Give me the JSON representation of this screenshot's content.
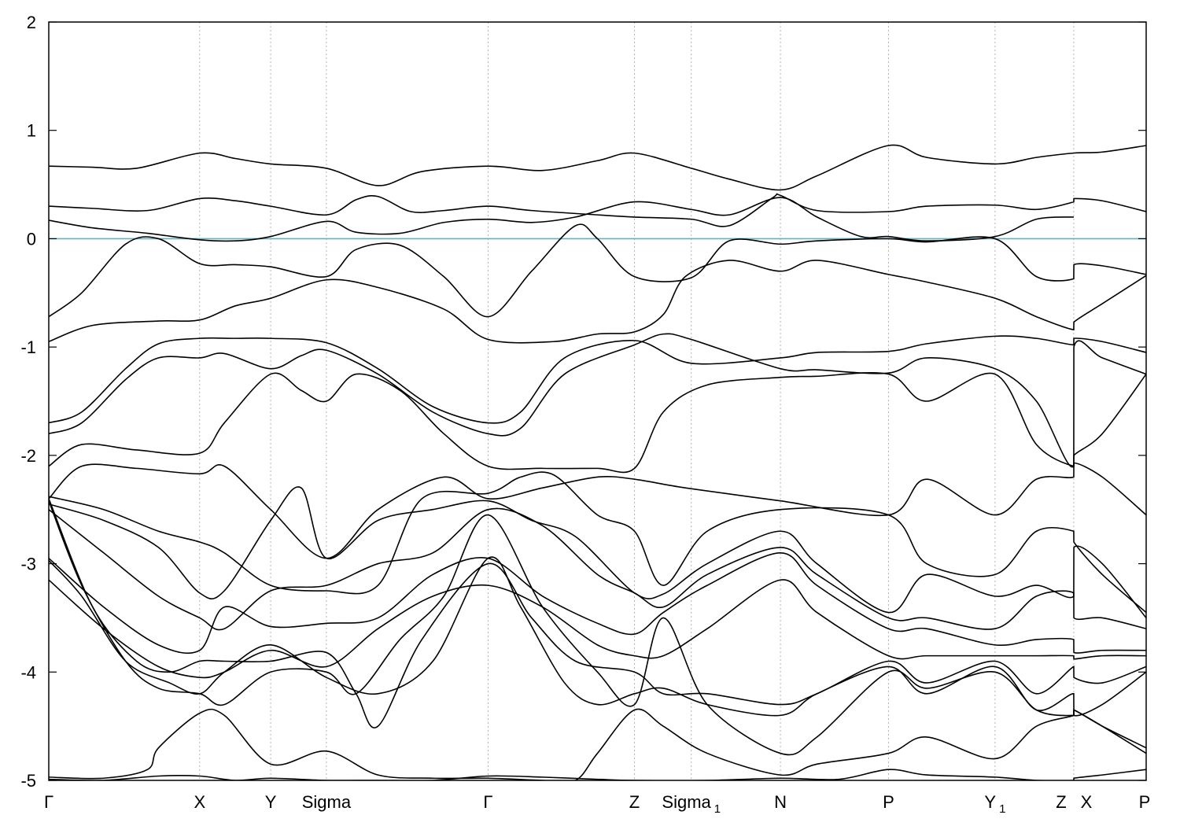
{
  "chart_data": {
    "type": "line",
    "title": "",
    "xlabel": "",
    "ylabel": "",
    "ylim": [
      -5,
      2
    ],
    "xlim": [
      0,
      1
    ],
    "yticks": [
      {
        "value": 2,
        "label": "2"
      },
      {
        "value": 1,
        "label": "1"
      },
      {
        "value": 0,
        "label": "0"
      },
      {
        "value": -1,
        "label": "-1"
      },
      {
        "value": -2,
        "label": "-2"
      },
      {
        "value": -3,
        "label": "-3"
      },
      {
        "value": -4,
        "label": "-4"
      },
      {
        "value": -5,
        "label": "-5"
      }
    ],
    "kpoints": [
      {
        "pos": 0.0,
        "label": "Γ",
        "sub": ""
      },
      {
        "pos": 0.1375,
        "label": "X",
        "sub": ""
      },
      {
        "pos": 0.2022,
        "label": "Y",
        "sub": ""
      },
      {
        "pos": 0.253,
        "label": "Sigma",
        "sub": ""
      },
      {
        "pos": 0.4003,
        "label": "Γ",
        "sub": ""
      },
      {
        "pos": 0.5337,
        "label": "Z",
        "sub": ""
      },
      {
        "pos": 0.5855,
        "label": "Sigma",
        "sub": "1"
      },
      {
        "pos": 0.6667,
        "label": "N",
        "sub": ""
      },
      {
        "pos": 0.7652,
        "label": "P",
        "sub": ""
      },
      {
        "pos": 0.8623,
        "label": "Y",
        "sub": "1"
      },
      {
        "pos": 0.934,
        "label": "Z",
        "sub": ""
      },
      {
        "pos": 0.934,
        "label": "X",
        "sub": ""
      },
      {
        "pos": 1.0,
        "label": "P",
        "sub": ""
      }
    ],
    "fermi_level": 0,
    "colors": {
      "bands": "#000000",
      "fermi": "#5ab4c8",
      "grid": "#a0a0a0"
    },
    "series": [
      {
        "x": [
          0.0,
          0.04,
          0.08,
          0.1375,
          0.17,
          0.2022,
          0.253,
          0.3,
          0.34,
          0.4003,
          0.45,
          0.5,
          0.5337,
          0.5855,
          0.62,
          0.6667,
          0.7,
          0.7652,
          0.8,
          0.8623,
          0.9,
          0.934,
          0.96,
          1.0
        ],
        "y": [
          0.67,
          0.66,
          0.65,
          0.79,
          0.74,
          0.69,
          0.65,
          0.49,
          0.62,
          0.67,
          0.63,
          0.72,
          0.79,
          0.65,
          0.55,
          0.45,
          0.58,
          0.86,
          0.75,
          0.69,
          0.75,
          0.79,
          0.8,
          0.86
        ]
      },
      {
        "x": [
          0.0,
          0.04,
          0.09,
          0.1375,
          0.17,
          0.2022,
          0.253,
          0.28,
          0.3,
          0.33,
          0.36,
          0.4003,
          0.44,
          0.5,
          0.5337,
          0.5855,
          0.62,
          0.66,
          0.6667,
          0.7,
          0.7652,
          0.8,
          0.8623,
          0.9,
          0.934,
          0.9341,
          0.96,
          1.0
        ],
        "y": [
          0.3,
          0.28,
          0.26,
          0.37,
          0.35,
          0.3,
          0.22,
          0.36,
          0.39,
          0.25,
          0.26,
          0.3,
          0.26,
          0.22,
          0.2,
          0.18,
          0.12,
          0.38,
          0.4,
          0.26,
          0.25,
          0.3,
          0.31,
          0.27,
          0.34,
          0.37,
          0.35,
          0.25
        ]
      },
      {
        "x": [
          0.0,
          0.04,
          0.09,
          0.1375,
          0.17,
          0.2022,
          0.253,
          0.28,
          0.32,
          0.36,
          0.4003,
          0.44,
          0.48,
          0.5337,
          0.5855,
          0.62,
          0.6667,
          0.7,
          0.74,
          0.7652,
          0.8,
          0.8623,
          0.9,
          0.934
        ],
        "y": [
          0.17,
          0.1,
          0.05,
          -0.01,
          -0.02,
          0.02,
          0.16,
          0.06,
          0.05,
          0.15,
          0.18,
          0.15,
          0.2,
          0.34,
          0.27,
          0.22,
          0.38,
          0.2,
          0.02,
          0.02,
          -0.02,
          0.02,
          0.18,
          0.2
        ]
      },
      {
        "x": [
          0.0,
          0.03,
          0.07,
          0.1,
          0.1375,
          0.17,
          0.2022,
          0.253,
          0.28,
          0.32,
          0.36,
          0.4003,
          0.44,
          0.48,
          0.5,
          0.5337,
          0.5855,
          0.62,
          0.6667,
          0.7,
          0.7652,
          0.8,
          0.8623,
          0.9,
          0.934,
          0.9341,
          0.96,
          1.0
        ],
        "y": [
          -0.72,
          -0.5,
          -0.05,
          0.0,
          -0.23,
          -0.24,
          -0.26,
          -0.35,
          -0.1,
          -0.06,
          -0.35,
          -0.72,
          -0.3,
          0.12,
          0.0,
          -0.35,
          -0.36,
          -0.02,
          -0.05,
          -0.02,
          0.0,
          -0.03,
          0.0,
          -0.35,
          -0.37,
          -0.24,
          -0.25,
          -0.33
        ]
      },
      {
        "x": [
          0.0,
          0.04,
          0.1,
          0.1375,
          0.17,
          0.2022,
          0.253,
          0.3,
          0.36,
          0.4003,
          0.46,
          0.5,
          0.5337,
          0.56,
          0.58,
          0.62,
          0.6667,
          0.7,
          0.7652,
          0.8,
          0.8623,
          0.9,
          0.934,
          0.9341,
          0.96,
          1.0
        ],
        "y": [
          -0.95,
          -0.8,
          -0.76,
          -0.75,
          -0.62,
          -0.55,
          -0.38,
          -0.45,
          -0.65,
          -0.93,
          -0.95,
          -0.88,
          -0.86,
          -0.7,
          -0.35,
          -0.2,
          -0.3,
          -0.2,
          -0.33,
          -0.4,
          -0.55,
          -0.72,
          -0.84,
          -0.77,
          -0.6,
          -0.34
        ]
      },
      {
        "x": [
          0.0,
          0.03,
          0.07,
          0.1,
          0.1375,
          0.17,
          0.2022,
          0.253,
          0.3,
          0.35,
          0.4003,
          0.43,
          0.47,
          0.5337,
          0.5855,
          0.6667,
          0.7,
          0.7652,
          0.8,
          0.8623,
          0.9,
          0.934,
          0.9341,
          0.96,
          1.0
        ],
        "y": [
          -1.7,
          -1.6,
          -1.2,
          -0.97,
          -0.92,
          -0.92,
          -0.92,
          -0.96,
          -1.2,
          -1.55,
          -1.7,
          -1.6,
          -1.1,
          -0.94,
          -1.15,
          -1.1,
          -1.05,
          -1.04,
          -0.97,
          -0.9,
          -0.92,
          -0.98,
          -0.92,
          -0.95,
          -1.05
        ]
      },
      {
        "x": [
          0.0,
          0.03,
          0.07,
          0.1,
          0.1375,
          0.16,
          0.2022,
          0.23,
          0.253,
          0.3,
          0.35,
          0.4003,
          0.43,
          0.47,
          0.5337,
          0.56,
          0.5855,
          0.6667,
          0.7,
          0.7652,
          0.8,
          0.8623,
          0.9,
          0.934,
          0.9341,
          0.96,
          1.0
        ],
        "y": [
          -1.8,
          -1.7,
          -1.3,
          -1.1,
          -1.1,
          -1.06,
          -1.2,
          -1.08,
          -1.03,
          -1.25,
          -1.6,
          -1.8,
          -1.75,
          -1.25,
          -0.98,
          -0.88,
          -0.93,
          -1.2,
          -1.21,
          -1.24,
          -1.1,
          -1.2,
          -1.5,
          -2.1,
          -1.0,
          -1.1,
          -1.25
        ]
      },
      {
        "x": [
          0.0,
          0.03,
          0.08,
          0.1375,
          0.16,
          0.2022,
          0.23,
          0.253,
          0.28,
          0.32,
          0.36,
          0.4003,
          0.45,
          0.5,
          0.5337,
          0.56,
          0.6,
          0.6667,
          0.7,
          0.7652,
          0.8,
          0.8623,
          0.9,
          0.934,
          0.9341,
          0.96,
          1.0
        ],
        "y": [
          -2.1,
          -1.9,
          -1.95,
          -1.98,
          -1.7,
          -1.25,
          -1.4,
          -1.5,
          -1.25,
          -1.4,
          -1.8,
          -2.1,
          -2.12,
          -2.12,
          -2.12,
          -1.6,
          -1.35,
          -1.28,
          -1.27,
          -1.25,
          -1.5,
          -1.25,
          -1.9,
          -2.1,
          -2.0,
          -1.8,
          -1.25
        ]
      },
      {
        "x": [
          0.0,
          0.03,
          0.08,
          0.1375,
          0.16,
          0.2022,
          0.253,
          0.3,
          0.36,
          0.4003,
          0.45,
          0.5,
          0.5337,
          0.58,
          0.6667,
          0.7652,
          0.8,
          0.8623,
          0.9,
          0.934,
          0.9341,
          0.96,
          1.0
        ],
        "y": [
          -2.4,
          -2.1,
          -2.12,
          -2.17,
          -2.1,
          -2.5,
          -2.95,
          -2.5,
          -2.2,
          -2.4,
          -2.3,
          -2.2,
          -2.22,
          -2.3,
          -2.42,
          -2.55,
          -2.22,
          -2.55,
          -2.22,
          -2.2,
          -2.07,
          -2.2,
          -2.55
        ]
      },
      {
        "x": [
          0.0,
          0.05,
          0.1,
          0.1375,
          0.16,
          0.2022,
          0.253,
          0.3,
          0.34,
          0.4003,
          0.43,
          0.46,
          0.5,
          0.5337,
          0.56,
          0.6,
          0.6667,
          0.7652,
          0.8,
          0.8623,
          0.9,
          0.934,
          0.9341,
          0.96,
          1.0
        ],
        "y": [
          -2.38,
          -2.5,
          -2.7,
          -2.8,
          -2.9,
          -3.2,
          -3.25,
          -3.2,
          -2.4,
          -2.35,
          -2.2,
          -2.18,
          -2.55,
          -2.7,
          -3.2,
          -2.7,
          -2.5,
          -2.55,
          -3.0,
          -3.1,
          -2.7,
          -2.7,
          -2.8,
          -3.1,
          -3.45
        ]
      },
      {
        "x": [
          0.0,
          0.05,
          0.1,
          0.1375,
          0.16,
          0.2022,
          0.23,
          0.253,
          0.3,
          0.35,
          0.4003,
          0.44,
          0.48,
          0.5337,
          0.56,
          0.6,
          0.6667,
          0.7,
          0.7652,
          0.8,
          0.8623,
          0.9,
          0.934,
          0.9341,
          0.96,
          1.0
        ],
        "y": [
          -2.45,
          -2.6,
          -2.85,
          -3.27,
          -3.25,
          -2.6,
          -2.3,
          -2.95,
          -2.6,
          -2.5,
          -2.42,
          -2.6,
          -2.75,
          -3.27,
          -3.28,
          -3.0,
          -2.7,
          -3.0,
          -3.45,
          -3.1,
          -3.3,
          -3.2,
          -3.3,
          -2.85,
          -3.0,
          -3.5
        ]
      },
      {
        "x": [
          0.0,
          0.05,
          0.1,
          0.1375,
          0.16,
          0.2022,
          0.253,
          0.3,
          0.35,
          0.4003,
          0.45,
          0.5,
          0.5337,
          0.56,
          0.6,
          0.6667,
          0.7,
          0.7652,
          0.8,
          0.8623,
          0.9,
          0.934,
          0.9341,
          0.96,
          1.0
        ],
        "y": [
          -2.5,
          -2.9,
          -3.3,
          -3.5,
          -3.6,
          -3.25,
          -3.2,
          -3.0,
          -2.9,
          -2.5,
          -2.65,
          -3.1,
          -3.27,
          -3.4,
          -3.1,
          -2.85,
          -3.1,
          -3.5,
          -3.5,
          -3.6,
          -3.3,
          -3.27,
          -3.5,
          -3.5,
          -3.6
        ]
      },
      {
        "x": [
          0.0,
          0.05,
          0.1,
          0.1375,
          0.16,
          0.2022,
          0.253,
          0.3,
          0.35,
          0.4003,
          0.45,
          0.5,
          0.5337,
          0.56,
          0.6,
          0.6667,
          0.7,
          0.7652,
          0.8,
          0.8623,
          0.9,
          0.934,
          0.9341,
          0.96,
          1.0
        ],
        "y": [
          -2.95,
          -3.4,
          -3.75,
          -3.8,
          -3.4,
          -3.58,
          -3.55,
          -3.5,
          -3.1,
          -2.95,
          -3.3,
          -3.55,
          -3.65,
          -3.45,
          -3.2,
          -2.9,
          -3.2,
          -3.6,
          -3.6,
          -3.75,
          -3.7,
          -3.7,
          -3.82,
          -3.8,
          -3.8
        ]
      },
      {
        "x": [
          0.0,
          0.05,
          0.1,
          0.1375,
          0.16,
          0.2022,
          0.253,
          0.3,
          0.35,
          0.4003,
          0.45,
          0.5,
          0.5337,
          0.56,
          0.6,
          0.6667,
          0.7,
          0.7652,
          0.8,
          0.8623,
          0.9,
          0.934,
          0.9341,
          0.96,
          1.0
        ],
        "y": [
          -3.15,
          -3.6,
          -3.95,
          -4.05,
          -4.0,
          -3.8,
          -3.95,
          -3.6,
          -3.3,
          -3.2,
          -3.4,
          -3.75,
          -3.85,
          -3.85,
          -3.6,
          -3.15,
          -3.45,
          -3.85,
          -3.85,
          -3.85,
          -3.85,
          -3.85,
          -3.88,
          -3.85,
          -3.85
        ]
      },
      {
        "x": [
          0.0,
          0.04,
          0.08,
          0.11,
          0.1375,
          0.16,
          0.2022,
          0.253,
          0.28,
          0.3,
          0.34,
          0.4003,
          0.44,
          0.48,
          0.5337,
          0.56,
          0.6,
          0.6667,
          0.7,
          0.7652,
          0.8,
          0.8623,
          0.9,
          0.934,
          0.9341,
          0.96,
          1.0
        ],
        "y": [
          -2.4,
          -3.4,
          -3.9,
          -4.0,
          -3.9,
          -3.9,
          -3.9,
          -3.82,
          -4.2,
          -4.5,
          -3.7,
          -3.0,
          -3.5,
          -3.9,
          -4.0,
          -4.2,
          -4.2,
          -4.3,
          -4.2,
          -3.9,
          -4.1,
          -3.9,
          -4.2,
          -3.95,
          -4.05,
          -4.1,
          -3.95
        ]
      },
      {
        "x": [
          0.0,
          0.03,
          0.07,
          0.11,
          0.1375,
          0.16,
          0.2022,
          0.253,
          0.3,
          0.35,
          0.4003,
          0.43,
          0.47,
          0.5,
          0.5337,
          0.56,
          0.6,
          0.6667,
          0.7,
          0.7652,
          0.8,
          0.8623,
          0.9,
          0.934,
          0.9341,
          0.96,
          1.0
        ],
        "y": [
          -2.97,
          -3.3,
          -3.9,
          -4.1,
          -4.2,
          -4.0,
          -3.75,
          -4.05,
          -4.2,
          -3.9,
          -2.95,
          -3.4,
          -4.1,
          -4.3,
          -4.2,
          -4.15,
          -4.3,
          -4.4,
          -4.2,
          -3.95,
          -4.2,
          -3.95,
          -4.35,
          -4.2,
          -4.4,
          -4.3,
          -4.0
        ]
      },
      {
        "x": [
          0.0,
          0.03,
          0.07,
          0.1,
          0.1375,
          0.16,
          0.2022,
          0.253,
          0.28,
          0.32,
          0.36,
          0.4003,
          0.45,
          0.5,
          0.5337,
          0.56,
          0.6,
          0.6667,
          0.7,
          0.7652,
          0.8,
          0.8623,
          0.9,
          0.934,
          0.9341,
          0.96,
          1.0
        ],
        "y": [
          -2.42,
          -3.2,
          -3.9,
          -4.15,
          -4.2,
          -4.3,
          -4.0,
          -4.0,
          -4.2,
          -3.7,
          -3.3,
          -2.55,
          -3.4,
          -4.0,
          -4.3,
          -3.5,
          -4.3,
          -4.75,
          -4.6,
          -4.0,
          -4.15,
          -4.0,
          -4.35,
          -4.4,
          -4.35,
          -4.5,
          -4.75
        ]
      },
      {
        "x": [
          0.0,
          0.05,
          0.09,
          0.1,
          0.1375,
          0.16,
          0.2022,
          0.253,
          0.3,
          0.35,
          0.4003,
          0.45,
          0.48,
          0.5,
          0.5337,
          0.56,
          0.6,
          0.6667,
          0.7,
          0.7652,
          0.8,
          0.8623,
          0.9,
          0.934,
          0.9341,
          0.96,
          1.0
        ],
        "y": [
          -4.97,
          -4.98,
          -4.9,
          -4.7,
          -4.38,
          -4.4,
          -4.85,
          -4.73,
          -4.95,
          -4.98,
          -4.98,
          -5.0,
          -5.0,
          -4.75,
          -4.35,
          -4.5,
          -4.75,
          -4.95,
          -4.85,
          -4.75,
          -4.6,
          -4.8,
          -4.5,
          -4.4,
          -4.35,
          -4.5,
          -4.7
        ]
      },
      {
        "x": [
          0.0,
          0.05,
          0.1,
          0.1375,
          0.17,
          0.2022,
          0.253,
          0.3,
          0.35,
          0.4003,
          0.45,
          0.5,
          0.5337,
          0.6,
          0.6667,
          0.72,
          0.7652,
          0.8,
          0.8623,
          0.9,
          0.934,
          0.9341,
          0.96,
          1.0
        ],
        "y": [
          -4.99,
          -5.0,
          -4.96,
          -4.96,
          -5.0,
          -4.98,
          -5.0,
          -5.0,
          -5.0,
          -4.96,
          -4.97,
          -4.99,
          -5.0,
          -5.0,
          -4.98,
          -4.99,
          -4.9,
          -4.95,
          -4.97,
          -5.0,
          -5.0,
          -4.98,
          -4.95,
          -4.9
        ]
      }
    ]
  }
}
